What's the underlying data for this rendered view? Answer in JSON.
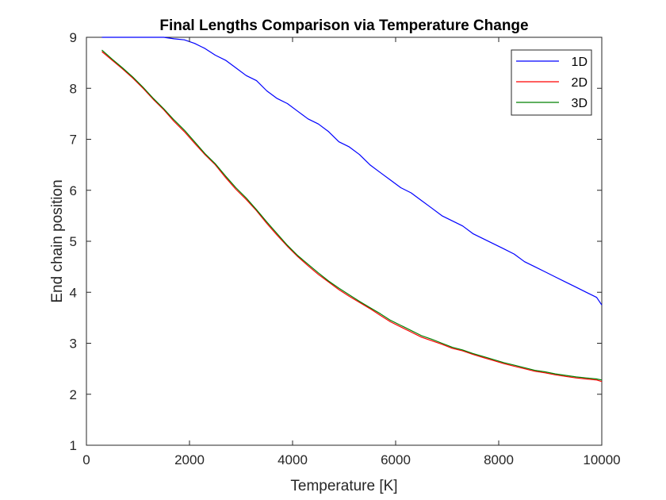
{
  "chart_data": {
    "type": "line",
    "title": "Final Lengths Comparison via Temperature Change",
    "xlabel": "Temperature [K]",
    "ylabel": "End chain position",
    "xlim": [
      0,
      10000
    ],
    "ylim": [
      1,
      9
    ],
    "xticks": [
      0,
      2000,
      4000,
      6000,
      8000,
      10000
    ],
    "yticks": [
      1,
      2,
      3,
      4,
      5,
      6,
      7,
      8,
      9
    ],
    "grid": false,
    "legend_position": "top-right",
    "series": [
      {
        "name": "1D",
        "color": "#0000ff",
        "x": [
          300,
          500,
          700,
          900,
          1100,
          1300,
          1500,
          1700,
          1900,
          2100,
          2300,
          2500,
          2700,
          2900,
          3100,
          3300,
          3500,
          3700,
          3900,
          4100,
          4300,
          4500,
          4700,
          4900,
          5100,
          5300,
          5500,
          5700,
          5900,
          6100,
          6300,
          6500,
          6700,
          6900,
          7100,
          7300,
          7500,
          7700,
          7900,
          8100,
          8300,
          8500,
          8700,
          8900,
          9100,
          9300,
          9500,
          9700,
          9900,
          10000
        ],
        "y": [
          9.0,
          9.0,
          9.0,
          9.0,
          9.0,
          9.0,
          9.0,
          8.97,
          8.95,
          8.88,
          8.78,
          8.65,
          8.55,
          8.4,
          8.25,
          8.15,
          7.95,
          7.8,
          7.7,
          7.55,
          7.4,
          7.3,
          7.15,
          6.95,
          6.85,
          6.7,
          6.5,
          6.35,
          6.2,
          6.05,
          5.95,
          5.8,
          5.65,
          5.5,
          5.4,
          5.3,
          5.15,
          5.05,
          4.95,
          4.85,
          4.75,
          4.6,
          4.5,
          4.4,
          4.3,
          4.2,
          4.1,
          4.0,
          3.9,
          3.75
        ]
      },
      {
        "name": "2D",
        "color": "#ff0000",
        "x": [
          300,
          500,
          700,
          900,
          1100,
          1300,
          1500,
          1700,
          1900,
          2100,
          2300,
          2500,
          2700,
          2900,
          3100,
          3300,
          3500,
          3700,
          3900,
          4100,
          4300,
          4500,
          4700,
          4900,
          5100,
          5300,
          5500,
          5700,
          5900,
          6100,
          6300,
          6500,
          6700,
          6900,
          7100,
          7300,
          7500,
          7700,
          7900,
          8100,
          8300,
          8500,
          8700,
          8900,
          9100,
          9300,
          9500,
          9700,
          9900,
          10000
        ],
        "y": [
          8.72,
          8.55,
          8.38,
          8.2,
          8.0,
          7.78,
          7.58,
          7.35,
          7.15,
          6.92,
          6.7,
          6.5,
          6.25,
          6.02,
          5.82,
          5.6,
          5.35,
          5.12,
          4.9,
          4.7,
          4.52,
          4.35,
          4.2,
          4.05,
          3.92,
          3.8,
          3.68,
          3.55,
          3.42,
          3.32,
          3.22,
          3.12,
          3.05,
          2.98,
          2.9,
          2.85,
          2.78,
          2.72,
          2.66,
          2.6,
          2.55,
          2.5,
          2.45,
          2.42,
          2.38,
          2.35,
          2.32,
          2.3,
          2.28,
          2.25
        ]
      },
      {
        "name": "3D",
        "color": "#008000",
        "x": [
          300,
          500,
          700,
          900,
          1100,
          1300,
          1500,
          1700,
          1900,
          2100,
          2300,
          2500,
          2700,
          2900,
          3100,
          3300,
          3500,
          3700,
          3900,
          4100,
          4300,
          4500,
          4700,
          4900,
          5100,
          5300,
          5500,
          5700,
          5900,
          6100,
          6300,
          6500,
          6700,
          6900,
          7100,
          7300,
          7500,
          7700,
          7900,
          8100,
          8300,
          8500,
          8700,
          8900,
          9100,
          9300,
          9500,
          9700,
          9900,
          10000
        ],
        "y": [
          8.75,
          8.57,
          8.4,
          8.22,
          8.02,
          7.8,
          7.6,
          7.38,
          7.18,
          6.95,
          6.72,
          6.52,
          6.28,
          6.05,
          5.85,
          5.62,
          5.38,
          5.15,
          4.92,
          4.72,
          4.55,
          4.38,
          4.22,
          4.08,
          3.95,
          3.82,
          3.7,
          3.58,
          3.45,
          3.35,
          3.25,
          3.15,
          3.08,
          3.0,
          2.92,
          2.87,
          2.8,
          2.74,
          2.68,
          2.62,
          2.57,
          2.52,
          2.47,
          2.44,
          2.4,
          2.37,
          2.34,
          2.32,
          2.3,
          2.28
        ]
      }
    ]
  }
}
